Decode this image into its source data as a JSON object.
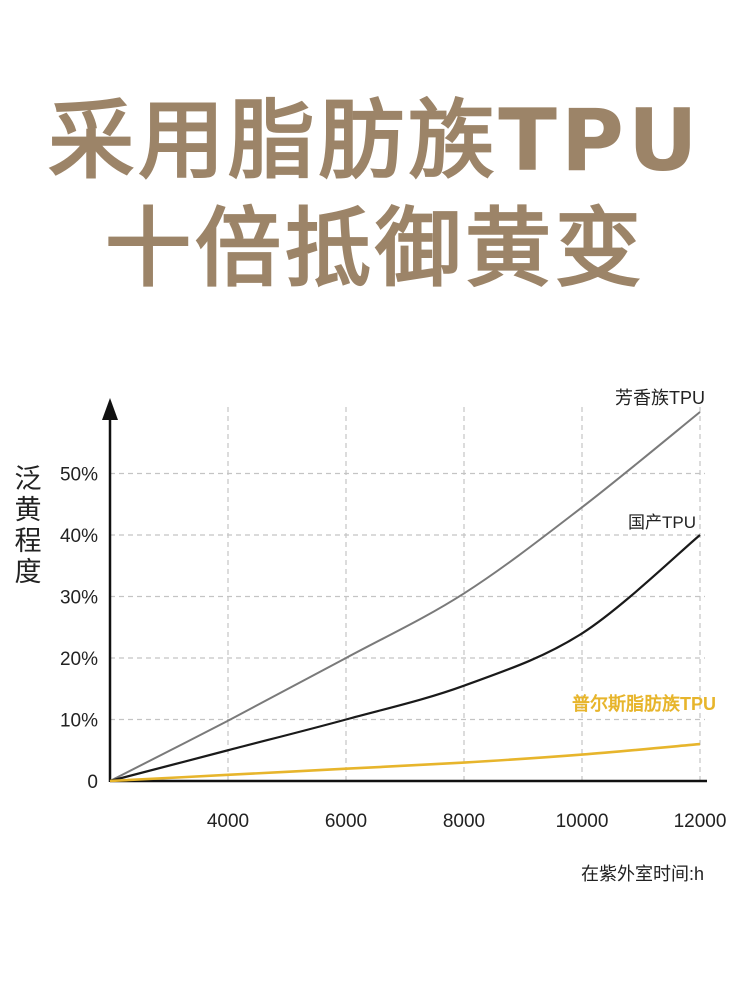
{
  "headline": {
    "line1": "采用脂肪族TPU",
    "line2": "十倍抵御黄变"
  },
  "chart_data": {
    "type": "line",
    "ylabel": "泛黄程度",
    "xlabel": "在紫外室时间:h",
    "xlim": [
      2000,
      12000
    ],
    "ylim": [
      0,
      60
    ],
    "x_ticks": [
      4000,
      6000,
      8000,
      10000,
      12000
    ],
    "y_ticks": [
      0,
      10,
      20,
      30,
      40,
      50
    ],
    "y_tick_labels": [
      "0",
      "10%",
      "20%",
      "30%",
      "40%",
      "50%"
    ],
    "grid": true,
    "series": [
      {
        "name": "芳香族TPU",
        "color": "#7a7a7a",
        "x": [
          2000,
          4000,
          6000,
          8000,
          10000,
          12000
        ],
        "y": [
          0,
          9.8,
          20,
          30.5,
          44.5,
          60
        ]
      },
      {
        "name": "国产TPU",
        "color": "#1a1a1a",
        "x": [
          2000,
          4000,
          6000,
          8000,
          10000,
          12000
        ],
        "y": [
          0,
          5,
          10,
          15.5,
          24,
          40
        ]
      },
      {
        "name": "普尔斯脂肪族TPU",
        "color": "#e7b52c",
        "x": [
          2000,
          4000,
          6000,
          8000,
          10000,
          12000
        ],
        "y": [
          0,
          1,
          2,
          3,
          4.3,
          6
        ]
      }
    ]
  }
}
